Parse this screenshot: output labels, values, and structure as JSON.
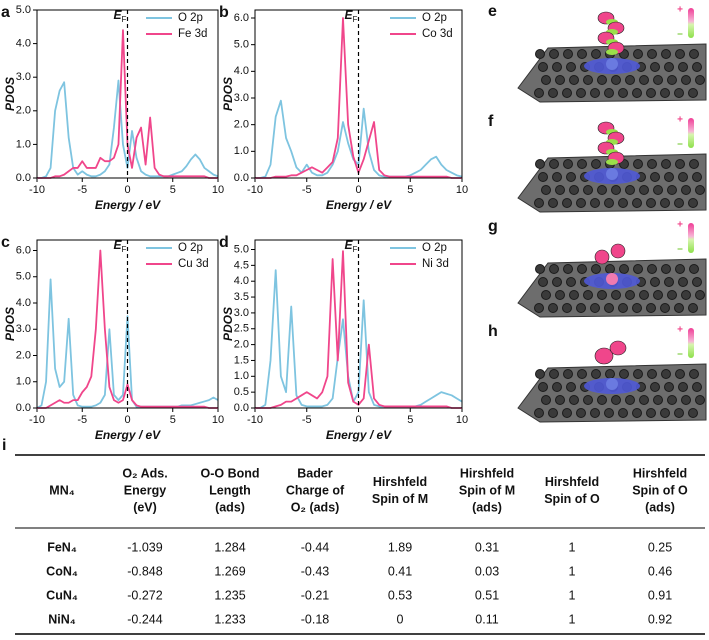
{
  "chart_data": [
    {
      "type": "line",
      "panel": "a",
      "x_label": "Energy / eV",
      "y_label": "PDOS",
      "fermi": {
        "label": "E",
        "subscript": "F",
        "x": 0
      },
      "x": [
        -10,
        -9.5,
        -9,
        -8.5,
        -8,
        -7.5,
        -7,
        -6.5,
        -6,
        -5.5,
        -5,
        -4.5,
        -4,
        -3.5,
        -3,
        -2.5,
        -2,
        -1.5,
        -1,
        -0.5,
        0,
        0.5,
        1,
        1.5,
        2,
        2.5,
        3,
        3.5,
        4,
        4.5,
        5,
        5.5,
        6,
        6.5,
        7,
        7.5,
        8,
        8.5,
        9,
        9.5,
        10
      ],
      "series": [
        {
          "name": "O 2p",
          "color": "#7ec4e0",
          "values": [
            0,
            0,
            0.05,
            0.3,
            2.0,
            2.6,
            2.85,
            1.2,
            0.3,
            0.1,
            0.2,
            0.1,
            0.05,
            0.05,
            0.1,
            0.2,
            0.4,
            1.5,
            2.9,
            1.0,
            0.3,
            1.4,
            0.6,
            0.2,
            0.1,
            0.05,
            0.05,
            0.05,
            0.05,
            0.05,
            0.1,
            0.15,
            0.2,
            0.35,
            0.55,
            0.7,
            0.55,
            0.3,
            0.2,
            0.1,
            0.05
          ]
        },
        {
          "name": "Fe 3d",
          "color": "#f0468b",
          "values": [
            0,
            0,
            0,
            0,
            0.05,
            0.05,
            0.1,
            0.2,
            0.3,
            0.3,
            0.5,
            0.3,
            0.3,
            0.3,
            0.6,
            0.5,
            0.5,
            0.6,
            1.0,
            4.4,
            1.0,
            0.3,
            1.2,
            1.5,
            0.4,
            1.8,
            0.3,
            0.1,
            0.05,
            0.05,
            0.05,
            0.05,
            0.05,
            0.05,
            0.05,
            0.05,
            0.05,
            0.05,
            0,
            0,
            0
          ]
        }
      ],
      "xlim": [
        -10,
        10
      ],
      "xticks": [
        -10,
        -5,
        0,
        5,
        10
      ],
      "ylim": [
        0,
        5
      ],
      "yticks": [
        {
          "value": 0,
          "label": "0.0"
        },
        {
          "value": 1,
          "label": "1.0"
        },
        {
          "value": 2,
          "label": "2.0"
        },
        {
          "value": 3,
          "label": "3.0"
        },
        {
          "value": 4,
          "label": "4.0"
        },
        {
          "value": 5,
          "label": "5.0"
        }
      ]
    },
    {
      "type": "line",
      "panel": "b",
      "x_label": "Energy / eV",
      "y_label": "PDOS",
      "fermi": {
        "label": "E",
        "subscript": "F",
        "x": 0
      },
      "x": [
        -10,
        -9.5,
        -9,
        -8.5,
        -8,
        -7.5,
        -7,
        -6.5,
        -6,
        -5.5,
        -5,
        -4.5,
        -4,
        -3.5,
        -3,
        -2.5,
        -2,
        -1.5,
        -1,
        -0.5,
        0,
        0.5,
        1,
        1.5,
        2,
        2.5,
        3,
        3.5,
        4,
        4.5,
        5,
        5.5,
        6,
        6.5,
        7,
        7.5,
        8,
        8.5,
        9,
        9.5,
        10
      ],
      "series": [
        {
          "name": "O 2p",
          "color": "#7ec4e0",
          "values": [
            0,
            0,
            0.05,
            0.5,
            2.3,
            2.9,
            1.5,
            1.0,
            0.4,
            0.2,
            0.5,
            0.2,
            0.1,
            0.1,
            0.2,
            0.5,
            1.0,
            2.1,
            1.3,
            0.7,
            0.5,
            2.6,
            1.0,
            0.3,
            0.1,
            0.05,
            0.05,
            0.05,
            0.05,
            0.05,
            0.1,
            0.2,
            0.3,
            0.5,
            0.7,
            0.8,
            0.5,
            0.3,
            0.2,
            0.1,
            0.05
          ]
        },
        {
          "name": "Co 3d",
          "color": "#f0468b",
          "values": [
            0,
            0,
            0,
            0,
            0.05,
            0.05,
            0.05,
            0.1,
            0.1,
            0.2,
            0.3,
            0.4,
            0.3,
            0.2,
            0.4,
            0.6,
            1.5,
            6.0,
            2.0,
            0.8,
            0.2,
            0.7,
            1.4,
            2.1,
            0.3,
            0.1,
            0.05,
            0.05,
            0.05,
            0.05,
            0.05,
            0.05,
            0.05,
            0.05,
            0.05,
            0.05,
            0.05,
            0.05,
            0,
            0,
            0
          ]
        }
      ],
      "xlim": [
        -10,
        10
      ],
      "xticks": [
        -10,
        -5,
        0,
        5,
        10
      ],
      "ylim": [
        0,
        6.3
      ],
      "yticks": [
        {
          "value": 0,
          "label": "0.0"
        },
        {
          "value": 1,
          "label": "1.0"
        },
        {
          "value": 2,
          "label": "2.0"
        },
        {
          "value": 3,
          "label": "3.0"
        },
        {
          "value": 4,
          "label": "4.0"
        },
        {
          "value": 5,
          "label": "5.0"
        },
        {
          "value": 6,
          "label": "6.0"
        }
      ]
    },
    {
      "type": "line",
      "panel": "c",
      "x_label": "Energy / eV",
      "y_label": "PDOS",
      "fermi": {
        "label": "E",
        "subscript": "F",
        "x": 0
      },
      "x": [
        -10,
        -9.5,
        -9,
        -8.5,
        -8,
        -7.5,
        -7,
        -6.5,
        -6,
        -5.5,
        -5,
        -4.5,
        -4,
        -3.5,
        -3,
        -2.5,
        -2,
        -1.5,
        -1,
        -0.5,
        0,
        0.5,
        1,
        1.5,
        2,
        2.5,
        3,
        3.5,
        4,
        4.5,
        5,
        5.5,
        6,
        6.5,
        7,
        7.5,
        8,
        8.5,
        9,
        9.5,
        10
      ],
      "series": [
        {
          "name": "O 2p",
          "color": "#7ec4e0",
          "values": [
            0,
            0.1,
            1.0,
            4.9,
            1.5,
            0.8,
            1.0,
            3.4,
            0.5,
            0.1,
            0.05,
            0.05,
            0.05,
            0.1,
            0.2,
            0.5,
            3.0,
            0.5,
            0.3,
            0.5,
            3.5,
            0.3,
            0.05,
            0.05,
            0.05,
            0.05,
            0.05,
            0.05,
            0.05,
            0.05,
            0.05,
            0.05,
            0.1,
            0.1,
            0.1,
            0.15,
            0.2,
            0.25,
            0.3,
            0.4,
            0.3
          ]
        },
        {
          "name": "Cu 3d",
          "color": "#f0468b",
          "values": [
            0,
            0,
            0,
            0.1,
            0.2,
            0.3,
            0.2,
            0.2,
            0.3,
            0.3,
            0.6,
            0.8,
            1.2,
            3.0,
            6.0,
            3.0,
            0.8,
            0.3,
            0.2,
            0.3,
            0.9,
            0.3,
            0.1,
            0.05,
            0.05,
            0.05,
            0.05,
            0.05,
            0.05,
            0.05,
            0.05,
            0.05,
            0.05,
            0.05,
            0.05,
            0.05,
            0.05,
            0.05,
            0,
            0,
            0
          ]
        }
      ],
      "xlim": [
        -10,
        10
      ],
      "xticks": [
        -10,
        -5,
        0,
        5,
        10
      ],
      "ylim": [
        0,
        6.4
      ],
      "yticks": [
        {
          "value": 0,
          "label": "0.0"
        },
        {
          "value": 1,
          "label": "1.0"
        },
        {
          "value": 2,
          "label": "2.0"
        },
        {
          "value": 3,
          "label": "3.0"
        },
        {
          "value": 4,
          "label": "4.0"
        },
        {
          "value": 5,
          "label": "5.0"
        },
        {
          "value": 6,
          "label": "6.0"
        }
      ]
    },
    {
      "type": "line",
      "panel": "d",
      "x_label": "Energy / eV",
      "y_label": "PDOS",
      "fermi": {
        "label": "E",
        "subscript": "F",
        "x": 0
      },
      "x": [
        -10,
        -9.5,
        -9,
        -8.5,
        -8,
        -7.5,
        -7,
        -6.5,
        -6,
        -5.5,
        -5,
        -4.5,
        -4,
        -3.5,
        -3,
        -2.5,
        -2,
        -1.5,
        -1,
        -0.5,
        0,
        0.5,
        1,
        1.5,
        2,
        2.5,
        3,
        3.5,
        4,
        4.5,
        5,
        5.5,
        6,
        6.5,
        7,
        7.5,
        8,
        8.5,
        9,
        9.5,
        10
      ],
      "series": [
        {
          "name": "O 2p",
          "color": "#7ec4e0",
          "values": [
            0,
            0,
            0.1,
            1.5,
            4.35,
            1.0,
            0.5,
            3.2,
            0.4,
            0.1,
            0.05,
            0.05,
            0.05,
            0.05,
            0.1,
            0.3,
            1.6,
            2.8,
            1.0,
            0.2,
            0.5,
            3.4,
            0.5,
            0.1,
            0.05,
            0.05,
            0.05,
            0.05,
            0.05,
            0.05,
            0.05,
            0.05,
            0.1,
            0.2,
            0.3,
            0.4,
            0.5,
            0.45,
            0.4,
            0.3,
            0.2
          ]
        },
        {
          "name": "Ni 3d",
          "color": "#f0468b",
          "values": [
            0,
            0,
            0,
            0,
            0.05,
            0.1,
            0.2,
            0.2,
            0.3,
            0.4,
            0.5,
            0.4,
            0.3,
            0.5,
            1.0,
            4.7,
            1.5,
            4.95,
            0.8,
            0.2,
            0.1,
            0.3,
            2.0,
            0.3,
            0.1,
            0.05,
            0.05,
            0.05,
            0.05,
            0.05,
            0.05,
            0.05,
            0.05,
            0.05,
            0.05,
            0.05,
            0.05,
            0.05,
            0,
            0,
            0
          ]
        }
      ],
      "xlim": [
        -10,
        10
      ],
      "xticks": [
        -10,
        -5,
        0,
        5,
        10
      ],
      "ylim": [
        0,
        5.3
      ],
      "yticks": [
        {
          "value": 0,
          "label": "0.0"
        },
        {
          "value": 0.5,
          "label": "0.5"
        },
        {
          "value": 1,
          "label": "1.0"
        },
        {
          "value": 1.5,
          "label": "1.5"
        },
        {
          "value": 2,
          "label": "2.0"
        },
        {
          "value": 2.5,
          "label": "2.5"
        },
        {
          "value": 3,
          "label": "3.0"
        },
        {
          "value": 3.5,
          "label": "3.5"
        },
        {
          "value": 4,
          "label": "4.0"
        },
        {
          "value": 4.5,
          "label": "4.5"
        },
        {
          "value": 5,
          "label": "5.0"
        }
      ]
    }
  ],
  "images": [
    {
      "panel": "e",
      "scale_top": "+",
      "scale_bottom": "–"
    },
    {
      "panel": "f",
      "scale_top": "+",
      "scale_bottom": "–"
    },
    {
      "panel": "g",
      "scale_top": "+",
      "scale_bottom": "–"
    },
    {
      "panel": "h",
      "scale_top": "+",
      "scale_bottom": "–"
    }
  ],
  "table": {
    "panel": "i",
    "header": [
      [
        "MN₄"
      ],
      [
        "O₂ Ads.",
        "Energy",
        "(eV)"
      ],
      [
        "O-O Bond",
        "Length",
        "(ads)"
      ],
      [
        "Bader",
        "Charge of",
        "O₂ (ads)"
      ],
      [
        "Hirshfeld",
        "Spin of M"
      ],
      [
        "Hirshfeld",
        "Spin of M",
        "(ads)"
      ],
      [
        "Hirshfeld",
        "Spin of O"
      ],
      [
        "Hirshfeld",
        "Spin of O",
        "(ads)"
      ]
    ],
    "rows": [
      [
        "FeN₄",
        -1.039,
        1.284,
        -0.44,
        1.89,
        0.31,
        1,
        0.25
      ],
      [
        "CoN₄",
        -0.848,
        1.269,
        -0.43,
        0.41,
        0.03,
        1,
        0.46
      ],
      [
        "CuN₄",
        -0.272,
        1.235,
        -0.21,
        0.53,
        0.51,
        1,
        0.91
      ],
      [
        "NiN₄",
        -0.244,
        1.233,
        -0.18,
        0,
        0.11,
        1,
        0.92
      ]
    ]
  }
}
